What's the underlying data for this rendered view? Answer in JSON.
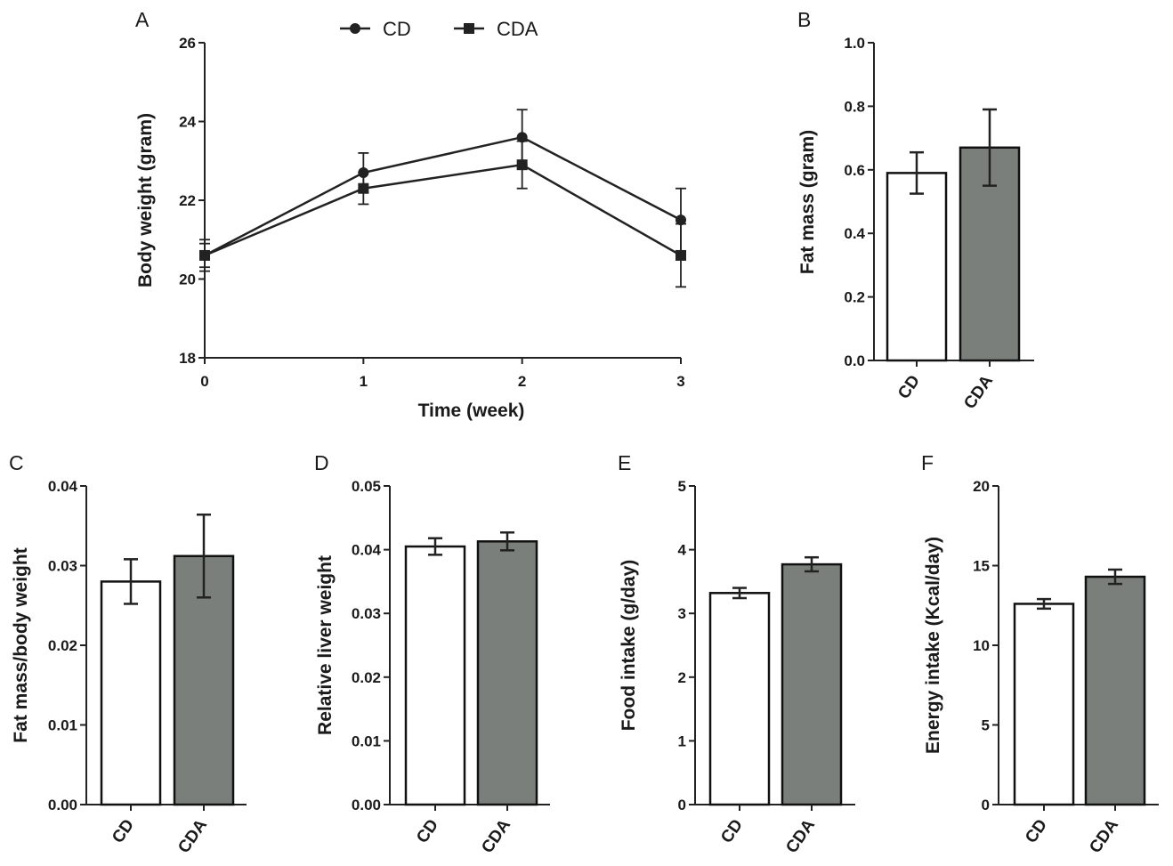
{
  "chart_data": [
    {
      "panel": "A",
      "type": "line",
      "xlabel": "Time (week)",
      "ylabel": "Body weight (gram)",
      "x": [
        0,
        1,
        2,
        3
      ],
      "xticks": [
        "0",
        "1",
        "2",
        "3"
      ],
      "xlim": [
        0,
        3
      ],
      "ylim": [
        18,
        26
      ],
      "yticks": [
        "18",
        "20",
        "22",
        "24",
        "26"
      ],
      "legend": {
        "placement": "top-center"
      },
      "series": [
        {
          "name": "CD",
          "marker": "circle",
          "values": [
            20.6,
            22.7,
            23.6,
            21.5
          ],
          "errors": [
            0.4,
            0.5,
            0.7,
            0.8
          ]
        },
        {
          "name": "CDA",
          "marker": "square",
          "values": [
            20.6,
            22.3,
            22.9,
            20.6
          ],
          "errors": [
            0.3,
            0.4,
            0.6,
            0.8
          ]
        }
      ]
    },
    {
      "panel": "B",
      "type": "bar",
      "ylabel": "Fat mass (gram)",
      "categories": [
        "CD",
        "CDA"
      ],
      "values": [
        0.59,
        0.67
      ],
      "errors": [
        0.065,
        0.12
      ],
      "ylim": [
        0,
        1.0
      ],
      "yticks": [
        "0.0",
        "0.2",
        "0.4",
        "0.6",
        "0.8",
        "1.0"
      ]
    },
    {
      "panel": "C",
      "type": "bar",
      "ylabel": "Fat mass/body weight",
      "categories": [
        "CD",
        "CDA"
      ],
      "values": [
        0.028,
        0.0312
      ],
      "errors": [
        0.0028,
        0.0052
      ],
      "ylim": [
        0,
        0.04
      ],
      "yticks": [
        "0.00",
        "0.01",
        "0.02",
        "0.03",
        "0.04"
      ]
    },
    {
      "panel": "D",
      "type": "bar",
      "ylabel": "Relative liver weight",
      "categories": [
        "CD",
        "CDA"
      ],
      "values": [
        0.0405,
        0.0413
      ],
      "errors": [
        0.0013,
        0.0014
      ],
      "ylim": [
        0,
        0.05
      ],
      "yticks": [
        "0.00",
        "0.01",
        "0.02",
        "0.03",
        "0.04",
        "0.05"
      ]
    },
    {
      "panel": "E",
      "type": "bar",
      "ylabel": "Food intake (g/day)",
      "categories": [
        "CD",
        "CDA"
      ],
      "values": [
        3.32,
        3.77
      ],
      "errors": [
        0.08,
        0.11
      ],
      "ylim": [
        0,
        5
      ],
      "yticks": [
        "0",
        "1",
        "2",
        "3",
        "4",
        "5"
      ]
    },
    {
      "panel": "F",
      "type": "bar",
      "ylabel": "Energy intake (Kcal/day)",
      "categories": [
        "CD",
        "CDA"
      ],
      "values": [
        12.6,
        14.3
      ],
      "errors": [
        0.3,
        0.45
      ],
      "ylim": [
        0,
        20
      ],
      "yticks": [
        "0",
        "5",
        "10",
        "15",
        "20"
      ]
    }
  ],
  "colors": {
    "axis": "#222222",
    "cd_bar": "#ffffff",
    "cda_bar": "#7a7f7c",
    "line": "#222222"
  }
}
